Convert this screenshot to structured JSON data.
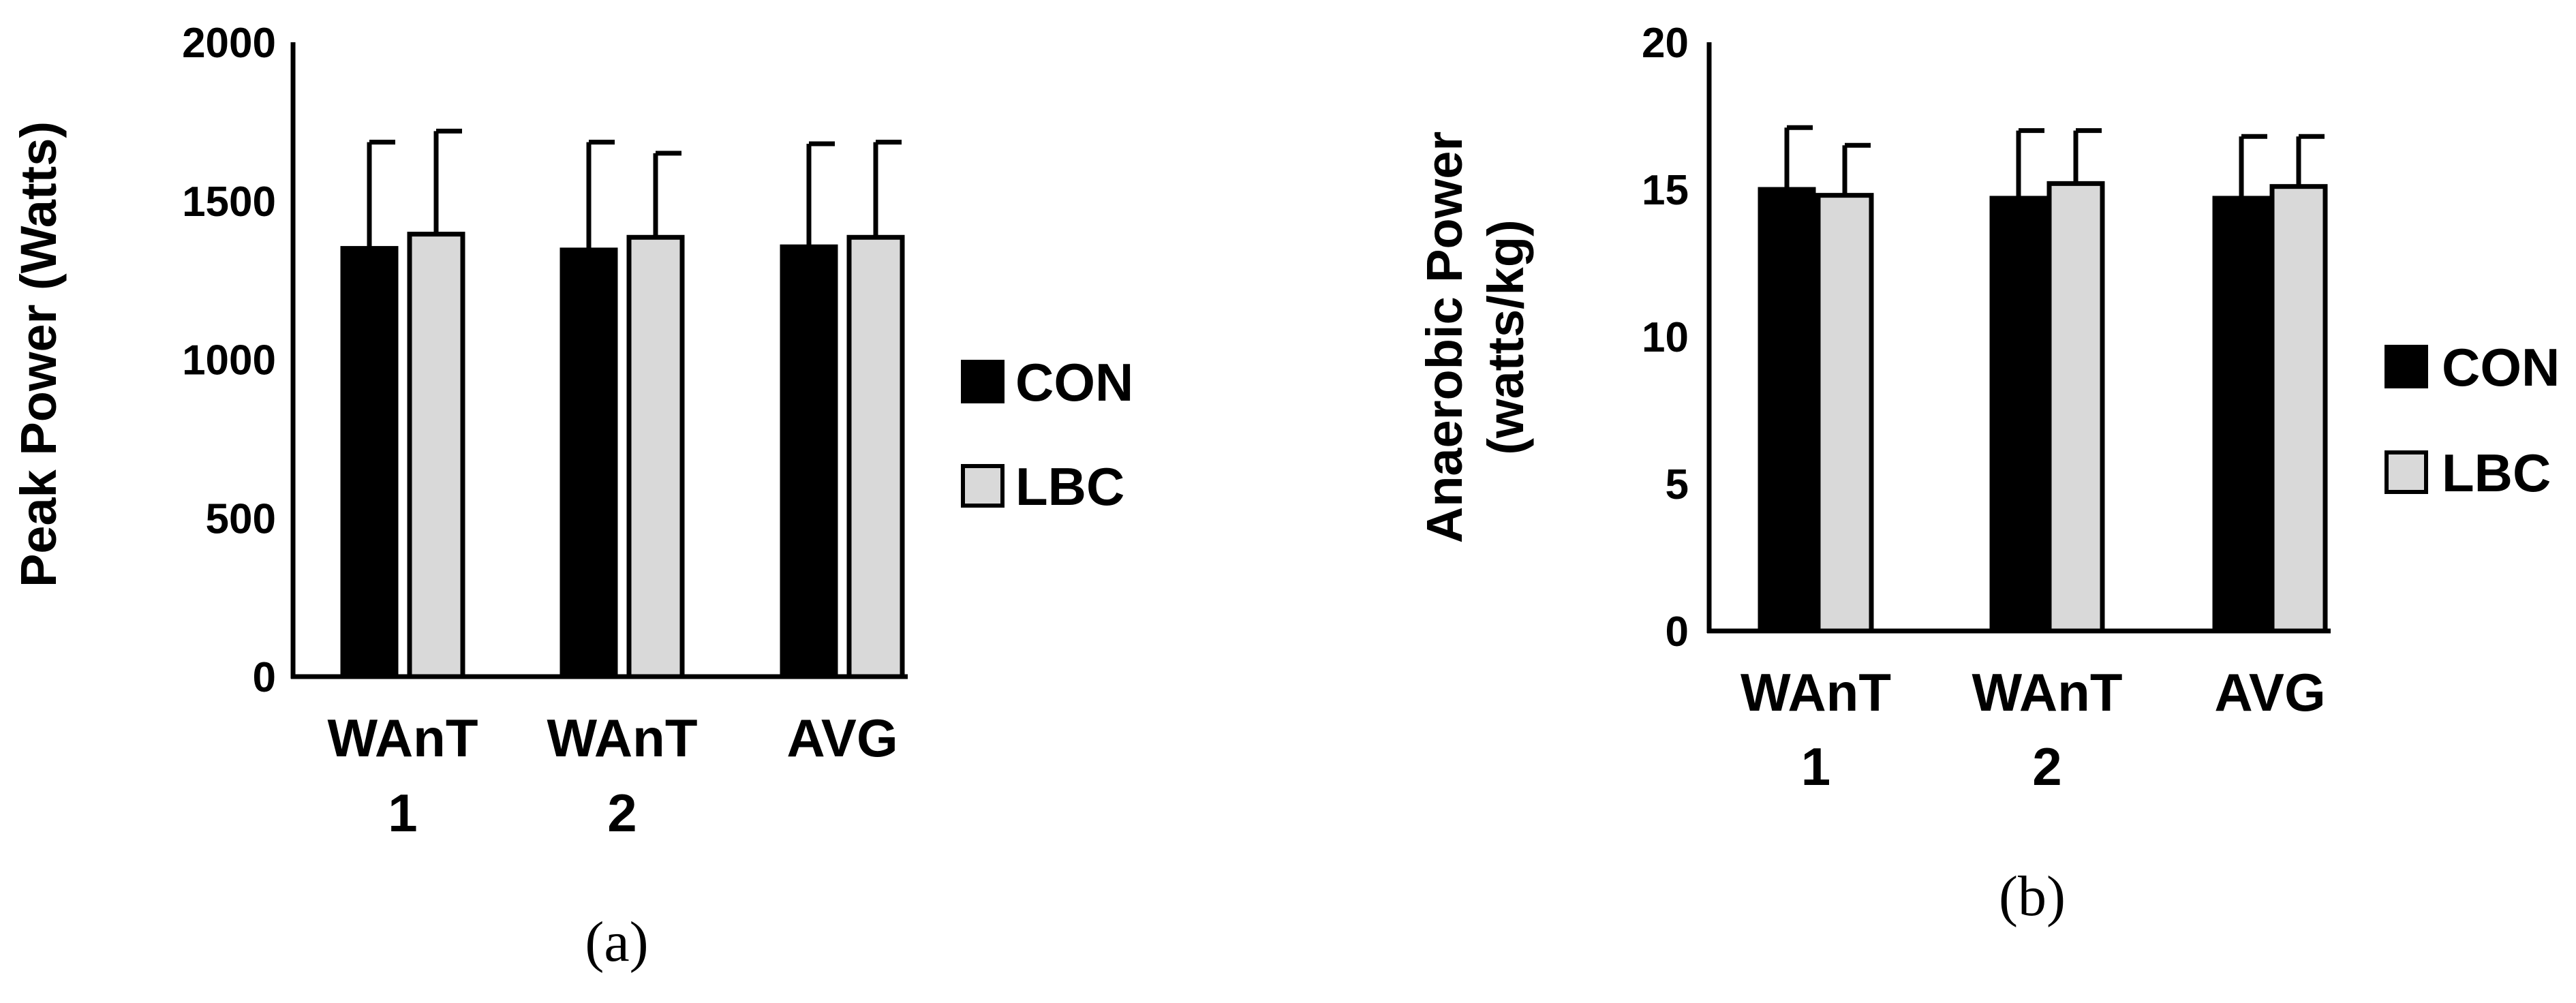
{
  "colors": {
    "CON": "#000000",
    "LBC": "#d9d9d9",
    "outline": "#000000"
  },
  "chart_data": [
    {
      "type": "bar",
      "panel_label": "(a)",
      "title": "",
      "xlabel": "",
      "ylabel": "Peak Power (Watts)",
      "ylim": [
        0,
        2000
      ],
      "yticks": [
        0,
        500,
        1000,
        1500,
        2000
      ],
      "grid": false,
      "legend_position": "right",
      "error_bars": true,
      "categories": [
        [
          "WAnT",
          "1"
        ],
        [
          "WAnT",
          "2"
        ],
        [
          "AVG"
        ]
      ],
      "series": [
        {
          "name": "CON",
          "values": [
            1350,
            1345,
            1355
          ],
          "errors": [
            335,
            340,
            325
          ]
        },
        {
          "name": "LBC",
          "values": [
            1395,
            1385,
            1385
          ],
          "errors": [
            325,
            265,
            300
          ]
        }
      ]
    },
    {
      "type": "bar",
      "panel_label": "(b)",
      "title": "",
      "xlabel": "",
      "ylabel": [
        "Anaerobic Power",
        "(watts/kg)"
      ],
      "ylim": [
        0,
        20
      ],
      "yticks": [
        0,
        5,
        10,
        15,
        20
      ],
      "grid": false,
      "legend_position": "right",
      "error_bars": true,
      "categories": [
        [
          "WAnT",
          "1"
        ],
        [
          "WAnT",
          "2"
        ],
        [
          "AVG"
        ]
      ],
      "series": [
        {
          "name": "CON",
          "values": [
            15.0,
            14.7,
            14.7
          ],
          "errors": [
            2.1,
            2.3,
            2.1
          ]
        },
        {
          "name": "LBC",
          "values": [
            14.8,
            15.2,
            15.1
          ],
          "errors": [
            1.7,
            1.8,
            1.7
          ]
        }
      ]
    }
  ]
}
